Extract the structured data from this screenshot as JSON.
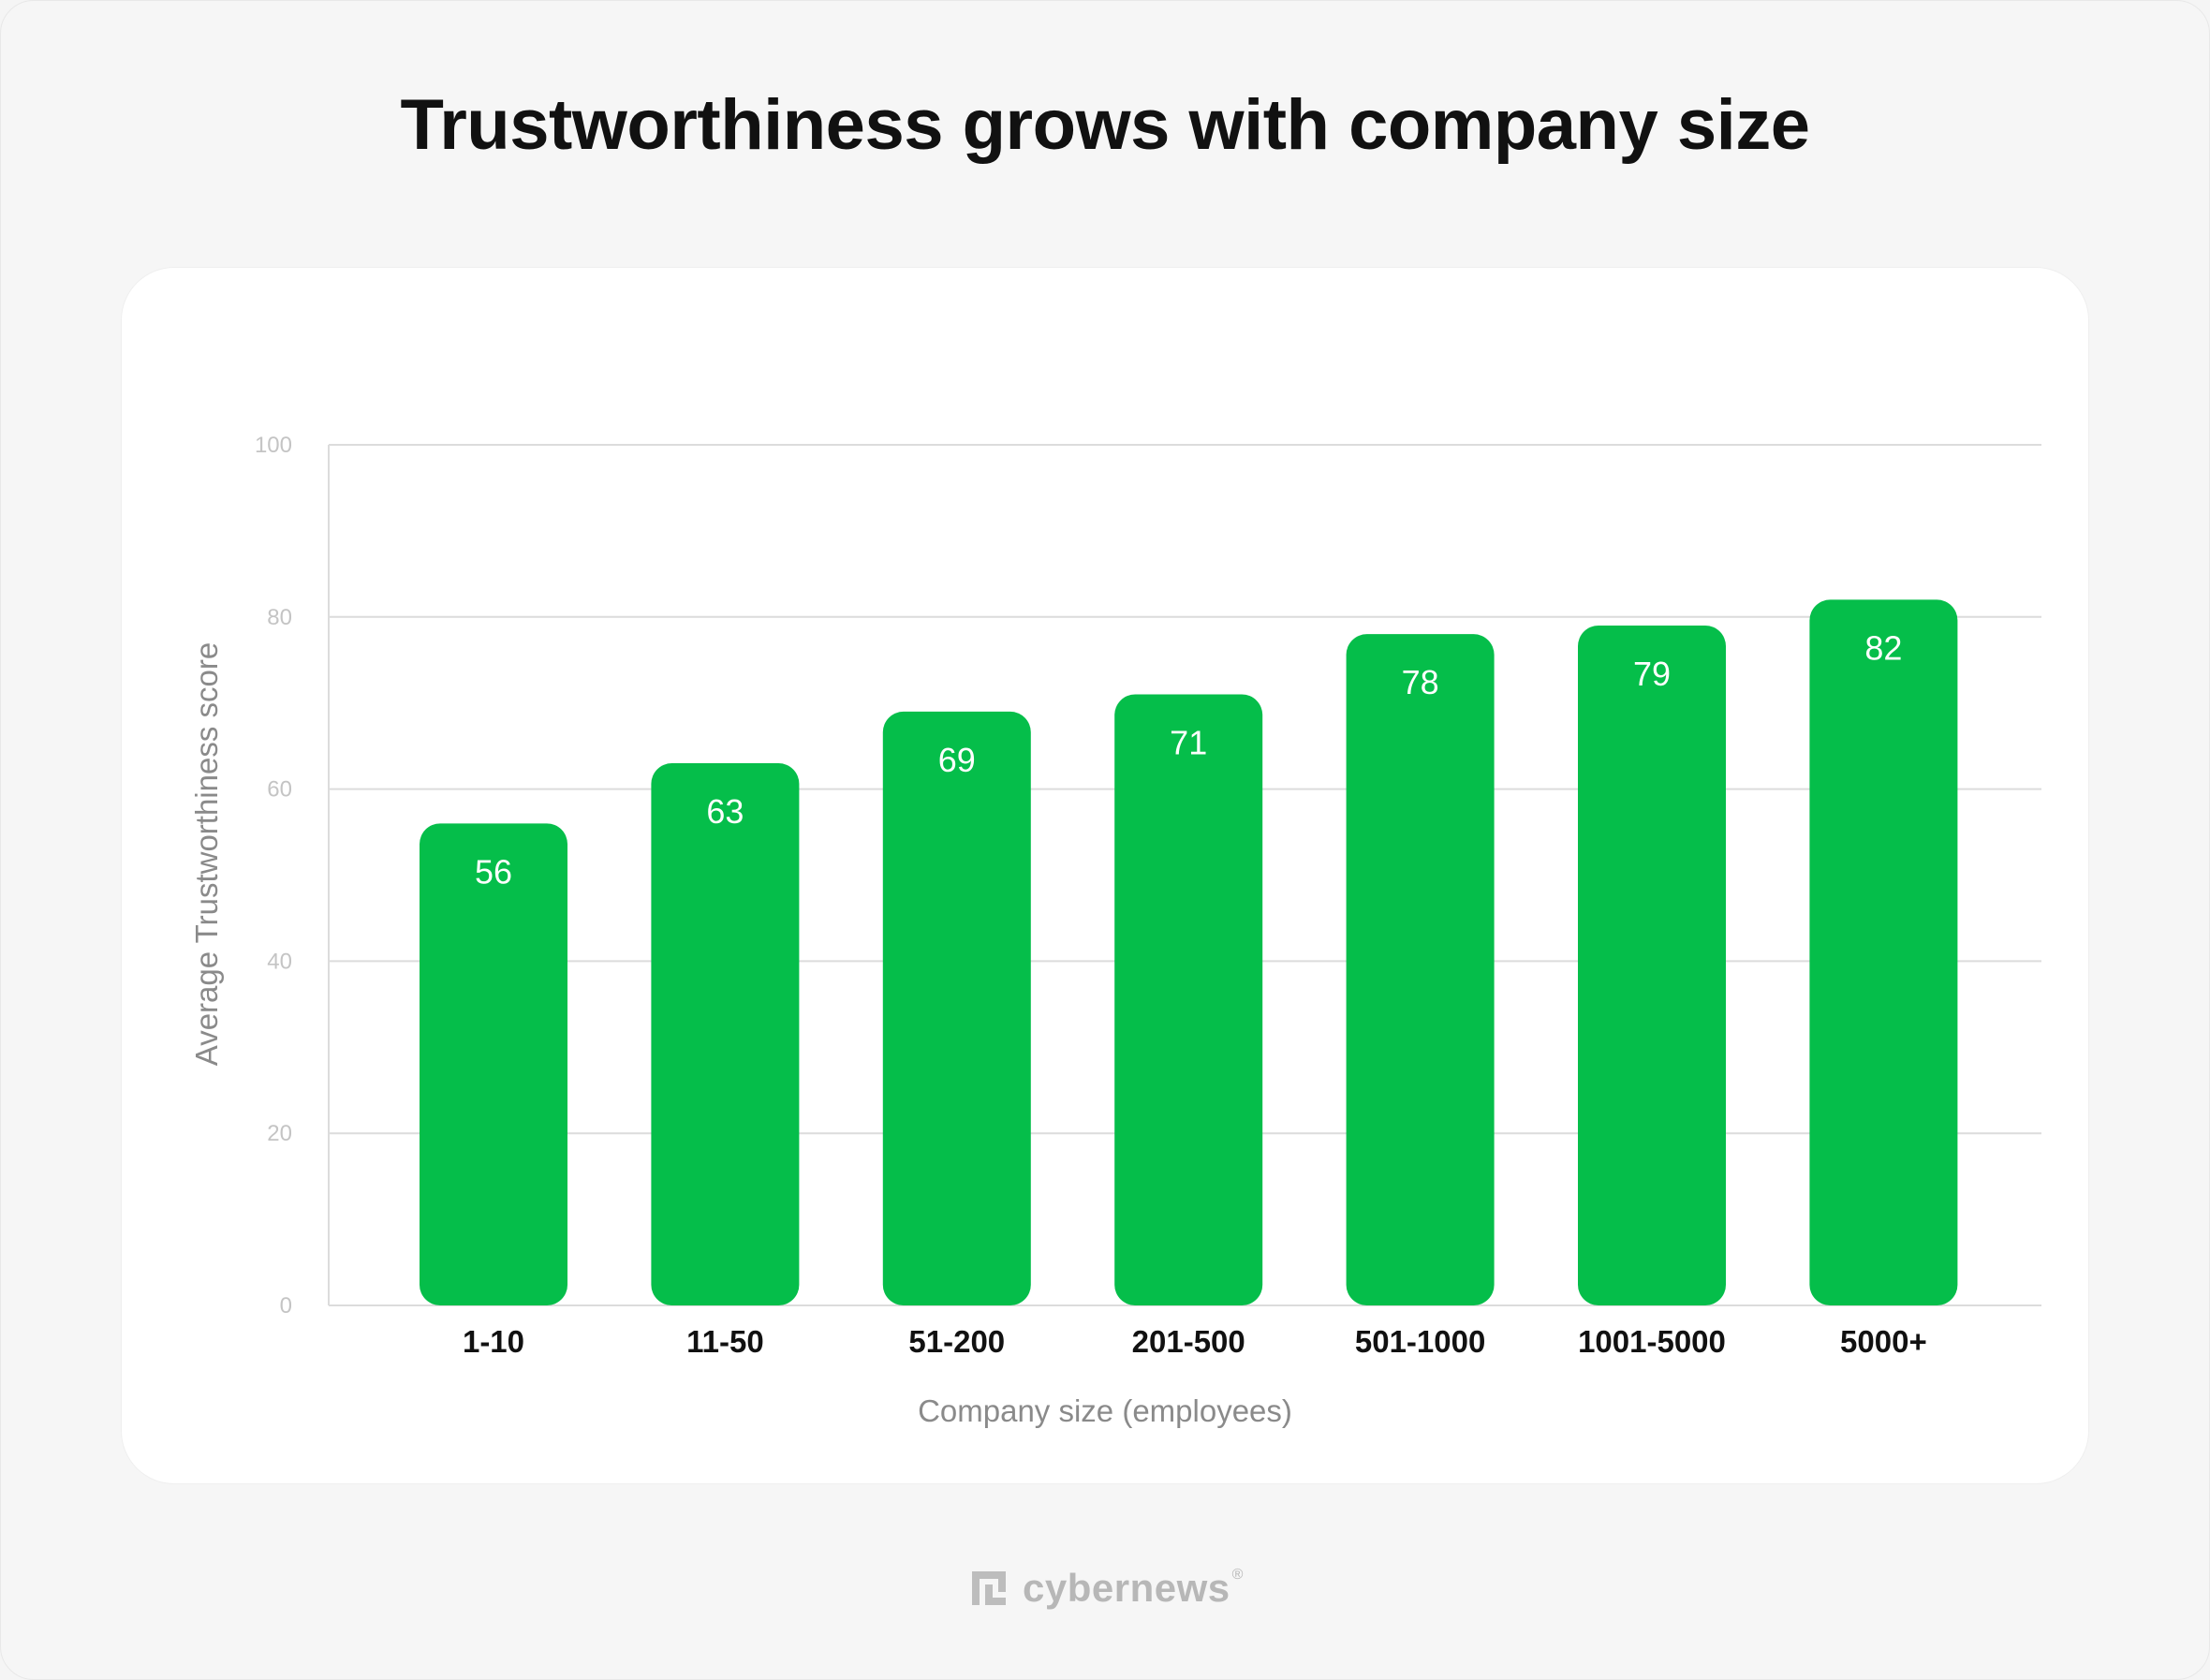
{
  "page": {
    "title": "Trustworthiness grows with company size",
    "brand": "cybernews",
    "brand_mark": "®"
  },
  "colors": {
    "bar": "#05be4a",
    "bar_label": "#ffffff",
    "grid": "#dcdcdc",
    "tick_label": "#c4c4c4",
    "category_label": "#111111",
    "axis_title": "#8a8a8a",
    "background": "#f6f6f6",
    "card": "#ffffff"
  },
  "chart_data": {
    "type": "bar",
    "title": "Trustworthiness grows with company size",
    "xlabel": "Company size (employees)",
    "ylabel": "Average Trustworthiness score",
    "categories": [
      "1-10",
      "11-50",
      "51-200",
      "201-500",
      "501-1000",
      "1001-5000",
      "5000+"
    ],
    "values": [
      56,
      63,
      69,
      71,
      78,
      79,
      82
    ],
    "ylim": [
      0,
      100
    ],
    "yticks": [
      0,
      20,
      40,
      60,
      80,
      100
    ],
    "grid": true,
    "legend": "none",
    "data_labels": true
  }
}
